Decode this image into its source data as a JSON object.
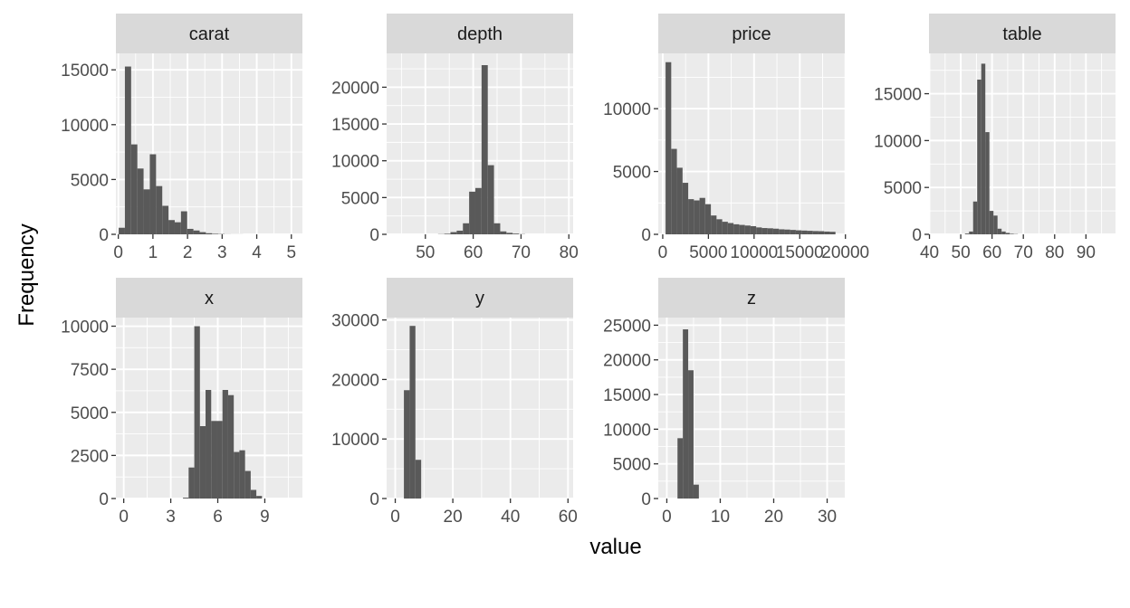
{
  "chart_data": {
    "type": "bar",
    "xlabel": "value",
    "ylabel": "Frequency",
    "grid": true,
    "colors": {
      "panel_bg": "#EBEBEB",
      "strip_bg": "#D9D9D9",
      "bar_fill": "#595959",
      "grid": "#FFFFFF"
    },
    "panels": [
      {
        "name": "carat",
        "xlim": [
          -0.07,
          5.32
        ],
        "ylim": [
          0,
          16500
        ],
        "x_ticks": [
          0,
          1,
          2,
          3,
          4,
          5
        ],
        "x_labels": [
          "0",
          "1",
          "2",
          "3",
          "4",
          "5"
        ],
        "y_ticks": [
          0,
          5000,
          10000,
          15000
        ],
        "y_labels": [
          "0",
          "5000",
          "10000",
          "15000"
        ],
        "bin_width": 0.18,
        "bins": [
          [
            0.1,
            600
          ],
          [
            0.28,
            15300
          ],
          [
            0.46,
            8200
          ],
          [
            0.64,
            6000
          ],
          [
            0.82,
            4100
          ],
          [
            1.0,
            7300
          ],
          [
            1.18,
            4400
          ],
          [
            1.36,
            2600
          ],
          [
            1.54,
            1300
          ],
          [
            1.72,
            1100
          ],
          [
            1.9,
            2100
          ],
          [
            2.08,
            500
          ],
          [
            2.26,
            350
          ],
          [
            2.44,
            200
          ],
          [
            2.62,
            100
          ],
          [
            2.8,
            50
          ],
          [
            2.98,
            30
          ],
          [
            3.16,
            10
          ],
          [
            3.34,
            5
          ],
          [
            3.52,
            5
          ]
        ]
      },
      {
        "name": "depth",
        "xlim": [
          41.9,
          80.9
        ],
        "ylim": [
          0,
          24600
        ],
        "x_ticks": [
          50,
          60,
          70,
          80
        ],
        "x_labels": [
          "50",
          "60",
          "70",
          "80"
        ],
        "y_ticks": [
          0,
          5000,
          10000,
          15000,
          20000
        ],
        "y_labels": [
          "0",
          "5000",
          "10000",
          "15000",
          "20000"
        ],
        "bin_width": 1.3,
        "bins": [
          [
            53.3,
            30
          ],
          [
            54.6,
            80
          ],
          [
            55.9,
            300
          ],
          [
            57.2,
            500
          ],
          [
            58.5,
            1500
          ],
          [
            59.8,
            5800
          ],
          [
            61.1,
            6300
          ],
          [
            62.4,
            23000
          ],
          [
            63.7,
            9400
          ],
          [
            65.0,
            1500
          ],
          [
            66.3,
            400
          ],
          [
            67.6,
            200
          ],
          [
            68.9,
            100
          ],
          [
            70.2,
            30
          ]
        ]
      },
      {
        "name": "price",
        "xlim": [
          -490,
          19930
        ],
        "ylim": [
          0,
          14400
        ],
        "x_ticks": [
          0,
          5000,
          10000,
          15000,
          20000
        ],
        "x_labels": [
          "0",
          "5000",
          "10000",
          "15000",
          "20000"
        ],
        "y_ticks": [
          0,
          5000,
          10000
        ],
        "y_labels": [
          "0",
          "5000",
          "10000"
        ],
        "bin_width": 620,
        "bins": [
          [
            620,
            13700
          ],
          [
            1240,
            6800
          ],
          [
            1860,
            5300
          ],
          [
            2480,
            4100
          ],
          [
            3100,
            2800
          ],
          [
            3720,
            2700
          ],
          [
            4340,
            2900
          ],
          [
            4960,
            2400
          ],
          [
            5580,
            1500
          ],
          [
            6200,
            1200
          ],
          [
            6820,
            1000
          ],
          [
            7440,
            900
          ],
          [
            8060,
            800
          ],
          [
            8680,
            750
          ],
          [
            9300,
            700
          ],
          [
            9920,
            650
          ],
          [
            10540,
            550
          ],
          [
            11160,
            500
          ],
          [
            11780,
            480
          ],
          [
            12400,
            450
          ],
          [
            13020,
            400
          ],
          [
            13640,
            380
          ],
          [
            14260,
            350
          ],
          [
            14880,
            320
          ],
          [
            15500,
            300
          ],
          [
            16120,
            280
          ],
          [
            16740,
            260
          ],
          [
            17360,
            250
          ],
          [
            17980,
            220
          ],
          [
            18600,
            200
          ]
        ]
      },
      {
        "name": "table",
        "xlim": [
          39.85,
          99.45
        ],
        "ylim": [
          0,
          19300
        ],
        "x_ticks": [
          40,
          50,
          60,
          70,
          80,
          90
        ],
        "x_labels": [
          "40",
          "50",
          "60",
          "70",
          "80",
          "90"
        ],
        "y_ticks": [
          0,
          5000,
          10000,
          15000
        ],
        "y_labels": [
          "0",
          "5000",
          "10000",
          "15000"
        ],
        "bin_width": 1.3,
        "bins": [
          [
            52.0,
            80
          ],
          [
            53.3,
            300
          ],
          [
            54.6,
            3500
          ],
          [
            55.9,
            16500
          ],
          [
            57.2,
            18200
          ],
          [
            58.5,
            10900
          ],
          [
            59.8,
            2500
          ],
          [
            61.1,
            2000
          ],
          [
            62.4,
            600
          ],
          [
            63.7,
            300
          ],
          [
            65.0,
            150
          ],
          [
            66.3,
            60
          ],
          [
            67.6,
            30
          ]
        ]
      },
      {
        "name": "x",
        "xlim": [
          -0.5,
          11.4
        ],
        "ylim": [
          0,
          10500
        ],
        "x_ticks": [
          0,
          3,
          6,
          9
        ],
        "x_labels": [
          "0",
          "3",
          "6",
          "9"
        ],
        "y_ticks": [
          0,
          2500,
          5000,
          7500,
          10000
        ],
        "y_labels": [
          "0",
          "2500",
          "5000",
          "7500",
          "10000"
        ],
        "bin_width": 0.36,
        "bins": [
          [
            3.96,
            50
          ],
          [
            4.32,
            1800
          ],
          [
            4.68,
            10000
          ],
          [
            5.04,
            4200
          ],
          [
            5.4,
            6300
          ],
          [
            5.76,
            4500
          ],
          [
            6.12,
            4500
          ],
          [
            6.48,
            6300
          ],
          [
            6.84,
            6000
          ],
          [
            7.2,
            2700
          ],
          [
            7.56,
            2800
          ],
          [
            7.92,
            1600
          ],
          [
            8.28,
            500
          ],
          [
            8.64,
            150
          ]
        ]
      },
      {
        "name": "y",
        "xlim": [
          -3.0,
          61.8
        ],
        "ylim": [
          0,
          30400
        ],
        "x_ticks": [
          0,
          20,
          40,
          60
        ],
        "x_labels": [
          "0",
          "20",
          "40",
          "60"
        ],
        "y_ticks": [
          0,
          10000,
          20000,
          30000
        ],
        "y_labels": [
          "0",
          "10000",
          "20000",
          "30000"
        ],
        "bin_width": 2.0,
        "bins": [
          [
            4.0,
            18200
          ],
          [
            6.0,
            29000
          ],
          [
            8.0,
            6500
          ]
        ]
      },
      {
        "name": "z",
        "xlim": [
          -1.6,
          33.3
        ],
        "ylim": [
          0,
          26100
        ],
        "x_ticks": [
          0,
          10,
          20,
          30
        ],
        "x_labels": [
          "0",
          "10",
          "20",
          "30"
        ],
        "y_ticks": [
          0,
          5000,
          10000,
          15000,
          20000,
          25000
        ],
        "y_labels": [
          "0",
          "5000",
          "10000",
          "15000",
          "20000",
          "25000"
        ],
        "bin_width": 1.0,
        "bins": [
          [
            2.5,
            8700
          ],
          [
            3.5,
            24400
          ],
          [
            4.5,
            18500
          ],
          [
            5.5,
            2000
          ]
        ]
      }
    ]
  }
}
